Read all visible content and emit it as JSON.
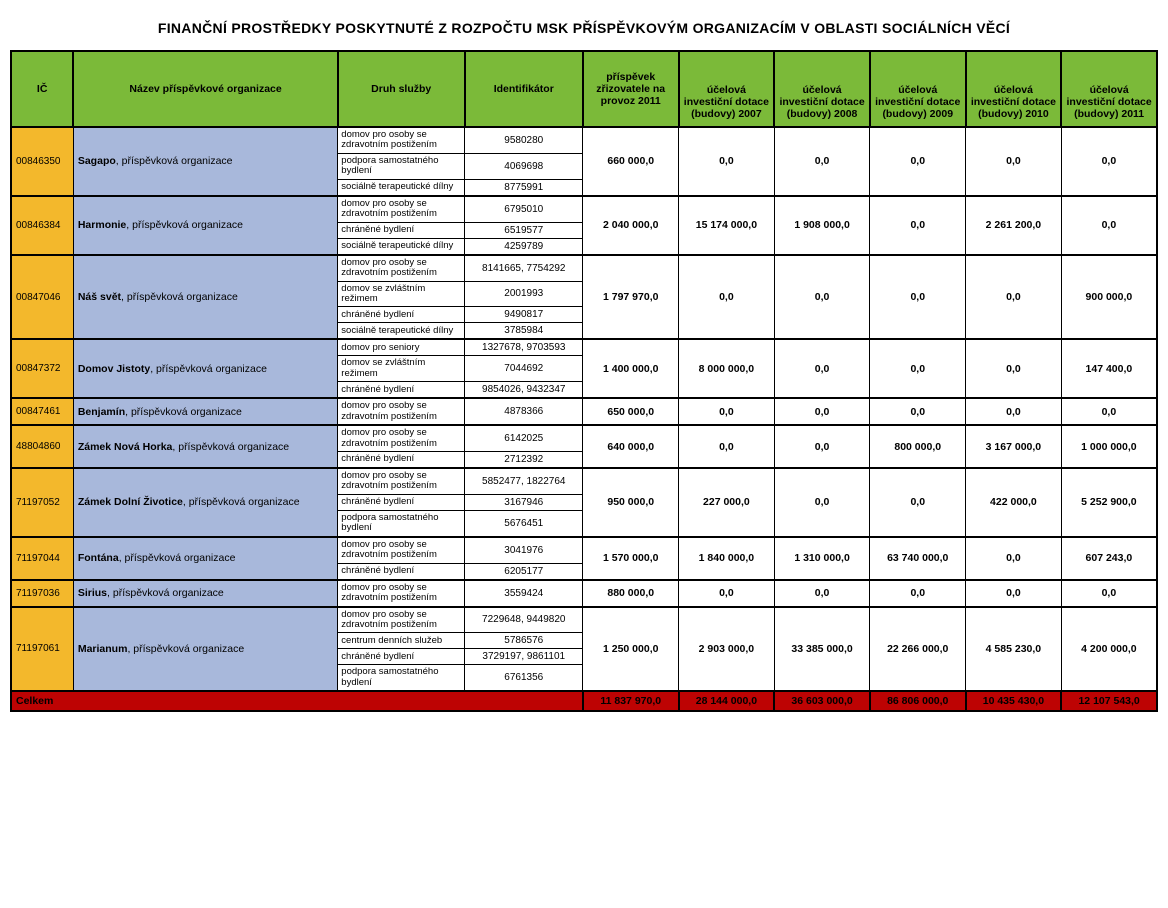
{
  "title": "FINANČNÍ PROSTŘEDKY POSKYTNUTÉ Z ROZPOČTU MSK PŘÍSPĚVKOVÝM ORGANIZACÍM V OBLASTI SOCIÁLNÍCH VĚCÍ",
  "columns": {
    "ic": "IČ",
    "name": "Název příspěvkové organizace",
    "service": "Druh služby",
    "ident": "Identifikátor",
    "c1": "příspěvek zřizovatele na provoz 2011",
    "c2": "účelová investiční dotace (budovy) 2007",
    "c3": "účelová investiční dotace (budovy) 2008",
    "c4": "účelová investiční dotace (budovy) 2009",
    "c5": "účelová investiční dotace (budovy) 2010",
    "c6": "účelová investiční dotace (budovy) 2011"
  },
  "orgs": [
    {
      "ic": "00846350",
      "name_bold": "Sagapo",
      "name_rest": ", příspěvková organizace",
      "services": [
        {
          "s": "domov pro osoby se zdravotním postižením",
          "id": "9580280"
        },
        {
          "s": "podpora samostatného bydlení",
          "id": "4069698"
        },
        {
          "s": "sociálně terapeutické dílny",
          "id": "8775991"
        }
      ],
      "vals": [
        "660 000,0",
        "0,0",
        "0,0",
        "0,0",
        "0,0",
        "0,0"
      ]
    },
    {
      "ic": "00846384",
      "name_bold": "Harmonie",
      "name_rest": ", příspěvková organizace",
      "services": [
        {
          "s": "domov pro osoby se zdravotním postižením",
          "id": "6795010"
        },
        {
          "s": "chráněné bydlení",
          "id": "6519577"
        },
        {
          "s": "sociálně terapeutické dílny",
          "id": "4259789"
        }
      ],
      "vals": [
        "2 040 000,0",
        "15 174 000,0",
        "1 908 000,0",
        "0,0",
        "2 261 200,0",
        "0,0"
      ]
    },
    {
      "ic": "00847046",
      "name_bold": "Náš svět",
      "name_rest": ", příspěvková organizace",
      "services": [
        {
          "s": "domov pro osoby se zdravotním postižením",
          "id": "8141665, 7754292"
        },
        {
          "s": "domov se zvláštním režimem",
          "id": "2001993"
        },
        {
          "s": "chráněné bydlení",
          "id": "9490817"
        },
        {
          "s": "sociálně terapeutické dílny",
          "id": "3785984"
        }
      ],
      "vals": [
        "1 797 970,0",
        "0,0",
        "0,0",
        "0,0",
        "0,0",
        "900 000,0"
      ]
    },
    {
      "ic": "00847372",
      "name_bold": "Domov Jistoty",
      "name_rest": ", příspěvková organizace",
      "services": [
        {
          "s": "domov pro seniory",
          "id": "1327678, 9703593"
        },
        {
          "s": "domov se zvláštním režimem",
          "id": "7044692"
        },
        {
          "s": "chráněné bydlení",
          "id": "9854026, 9432347"
        }
      ],
      "vals": [
        "1 400 000,0",
        "8 000 000,0",
        "0,0",
        "0,0",
        "0,0",
        "147 400,0"
      ]
    },
    {
      "ic": "00847461",
      "name_bold": "Benjamín",
      "name_rest": ", příspěvková organizace",
      "services": [
        {
          "s": "domov pro osoby se zdravotním postižením",
          "id": "4878366"
        }
      ],
      "vals": [
        "650 000,0",
        "0,0",
        "0,0",
        "0,0",
        "0,0",
        "0,0"
      ]
    },
    {
      "ic": "48804860",
      "name_bold": "Zámek Nová Horka",
      "name_rest": ", příspěvková organizace",
      "services": [
        {
          "s": "domov pro osoby se zdravotním postižením",
          "id": "6142025"
        },
        {
          "s": "chráněné bydlení",
          "id": "2712392"
        }
      ],
      "vals": [
        "640 000,0",
        "0,0",
        "0,0",
        "800 000,0",
        "3 167 000,0",
        "1 000 000,0"
      ]
    },
    {
      "ic": "71197052",
      "name_bold": "Zámek Dolní Životice",
      "name_rest": ", příspěvková organizace",
      "services": [
        {
          "s": "domov pro osoby se zdravotním postižením",
          "id": "5852477, 1822764"
        },
        {
          "s": "chráněné bydlení",
          "id": "3167946"
        },
        {
          "s": "podpora samostatného bydlení",
          "id": "5676451"
        }
      ],
      "vals": [
        "950 000,0",
        "227 000,0",
        "0,0",
        "0,0",
        "422 000,0",
        "5 252 900,0"
      ]
    },
    {
      "ic": "71197044",
      "name_bold": "Fontána",
      "name_rest": ", příspěvková organizace",
      "services": [
        {
          "s": "domov pro osoby se zdravotním postižením",
          "id": "3041976"
        },
        {
          "s": "chráněné bydlení",
          "id": "6205177"
        }
      ],
      "vals": [
        "1 570 000,0",
        "1 840 000,0",
        "1 310 000,0",
        "63 740 000,0",
        "0,0",
        "607 243,0"
      ]
    },
    {
      "ic": "71197036",
      "name_bold": "Sirius",
      "name_rest": ", příspěvková organizace",
      "services": [
        {
          "s": "domov pro osoby se zdravotním postižením",
          "id": "3559424"
        }
      ],
      "vals": [
        "880 000,0",
        "0,0",
        "0,0",
        "0,0",
        "0,0",
        "0,0"
      ]
    },
    {
      "ic": "71197061",
      "name_bold": "Marianum",
      "name_rest": ", příspěvková organizace",
      "services": [
        {
          "s": "domov pro osoby se zdravotním postižením",
          "id": "7229648, 9449820"
        },
        {
          "s": "centrum denních služeb",
          "id": "5786576"
        },
        {
          "s": "chráněné bydlení",
          "id": "3729197, 9861101"
        },
        {
          "s": "podpora samostatného bydlení",
          "id": "6761356"
        }
      ],
      "vals": [
        "1 250 000,0",
        "2 903 000,0",
        "33 385 000,0",
        "22 266 000,0",
        "4 585 230,0",
        "4 200 000,0"
      ]
    }
  ],
  "total": {
    "label": "Celkem",
    "vals": [
      "11 837 970,0",
      "28 144 000,0",
      "36 603 000,0",
      "86 806 000,0",
      "10 435 430,0",
      "12 107 543,0"
    ]
  },
  "styling": {
    "header_bg": "#7bba39",
    "ic_bg": "#f3b82c",
    "name_bg": "#a8b8db",
    "total_bg": "#bd0303",
    "border": "#000000",
    "font_family": "Arial",
    "title_fontsize": 14,
    "cell_fontsize": 10
  }
}
